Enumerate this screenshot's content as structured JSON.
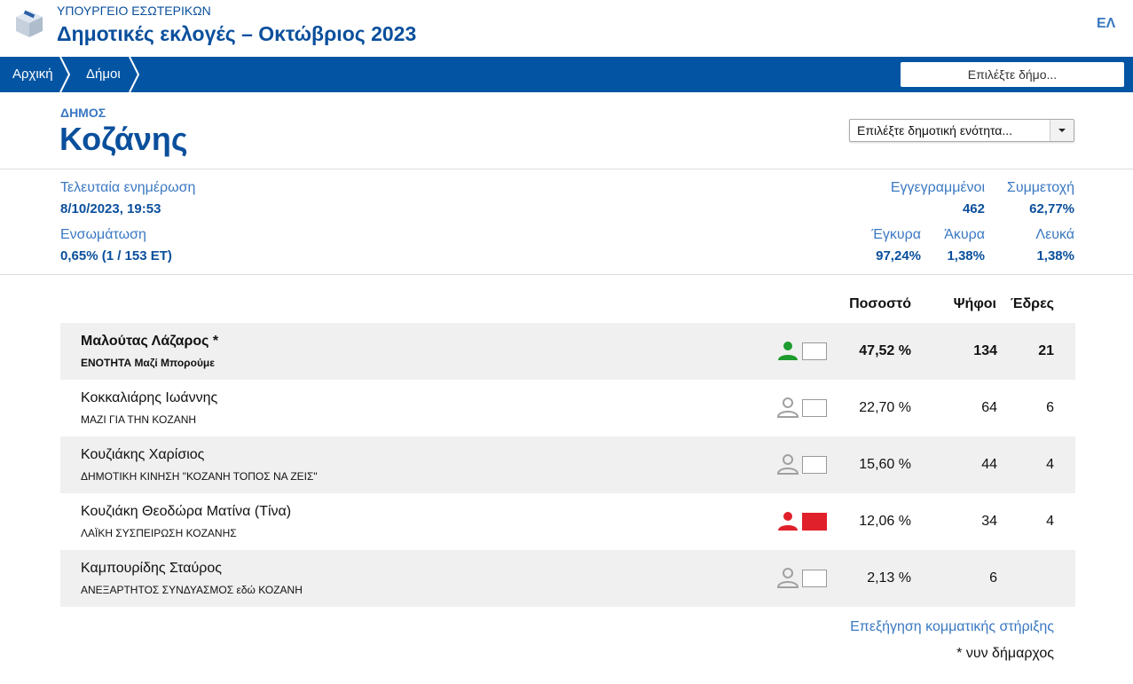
{
  "header": {
    "ministry": "ΥΠΟΥΡΓΕΙΟ ΕΣΩΤΕΡΙΚΩΝ",
    "title": "Δημοτικές εκλογές – Οκτώβριος 2023",
    "language": "ΕΛ"
  },
  "nav": {
    "breadcrumbs": [
      "Αρχική",
      "Δήμοι"
    ],
    "search_placeholder": "Επιλέξτε δήμο..."
  },
  "municipality": {
    "label": "ΔΗΜΟΣ",
    "name": "Κοζάνης",
    "unit_select": "Επιλέξτε δημοτική ενότητα..."
  },
  "stats": {
    "last_update": {
      "label": "Τελευταία ενημέρωση",
      "value": "8/10/2023, 19:53"
    },
    "integration": {
      "label": "Ενσωμάτωση",
      "value": "0,65% (1 / 153 ΕΤ)"
    },
    "registered": {
      "label": "Εγγεγραμμένοι",
      "value": "462"
    },
    "turnout": {
      "label": "Συμμετοχή",
      "value": "62,77%"
    },
    "valid": {
      "label": "Έγκυρα",
      "value": "97,24%"
    },
    "invalid": {
      "label": "Άκυρα",
      "value": "1,38%"
    },
    "blank": {
      "label": "Λευκά",
      "value": "1,38%"
    }
  },
  "table": {
    "headers": [
      "Ποσοστό",
      "Ψήφοι",
      "Έδρες"
    ],
    "rows": [
      {
        "candidate": "Μαλούτας Λάζαρος *",
        "party": "ΕΝΟΤΗΤΑ Μαζί Μπορούμε",
        "percent": "47,52 %",
        "votes": 134,
        "seats": 21,
        "icon_color": "#1e9b2e"
      },
      {
        "candidate": "Κοκκαλιάρης Ιωάννης",
        "party": "ΜΑΖΙ ΓΙΑ ΤΗΝ ΚΟΖΑΝΗ",
        "percent": "22,70 %",
        "votes": 64,
        "seats": 6,
        "icon_color": "#a0a0a0"
      },
      {
        "candidate": "Κουζιάκης Χαρίσιος",
        "party": "ΔΗΜΟΤΙΚΗ ΚΙΝΗΣΗ \"ΚΟΖΑΝΗ ΤΟΠΟΣ ΝΑ ΖΕΙΣ\"",
        "percent": "15,60 %",
        "votes": 44,
        "seats": 4,
        "icon_color": "#a0a0a0"
      },
      {
        "candidate": "Κουζιάκη Θεοδώρα Ματίνα (Τίνα)",
        "party": "ΛΑΪΚΗ ΣΥΣΠΕΙΡΩΣΗ ΚΟΖΑΝΗΣ",
        "percent": "12,06 %",
        "votes": 34,
        "seats": 4,
        "icon_color": "#e0202a",
        "box_color": "#e0202a"
      },
      {
        "candidate": "Καμπουρίδης Σταύρος",
        "party": "ΑΝΕΞΑΡΤΗΤΟΣ ΣΥΝΔΥΑΣΜΟΣ εδώ ΚΟΖΑΝΗ",
        "percent": "2,13 %",
        "votes": 6,
        "icon_color": "#a0a0a0"
      }
    ]
  },
  "footer": {
    "link": "Επεξήγηση κομματικής στήριξης",
    "note": "* νυν δήμαρχος"
  }
}
